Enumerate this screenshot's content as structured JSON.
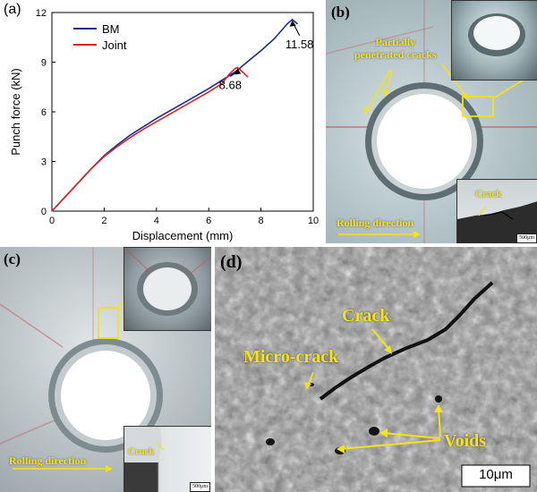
{
  "panels": {
    "a": {
      "letter": "(a)",
      "chart_data": {
        "type": "line",
        "xlabel": "Displacement (mm)",
        "ylabel": "Punch force (kN)",
        "xlim": [
          0,
          10
        ],
        "ylim": [
          0,
          12
        ],
        "xticks": [
          0,
          2,
          4,
          6,
          8,
          10
        ],
        "yticks": [
          0,
          3,
          6,
          9,
          12
        ],
        "legend_position": "top-left",
        "series": [
          {
            "name": "BM",
            "color": "#1c2a8c",
            "points": [
              [
                0,
                0
              ],
              [
                0.5,
                0.85
              ],
              [
                1,
                1.7
              ],
              [
                1.5,
                2.55
              ],
              [
                2,
                3.35
              ],
              [
                2.5,
                4.0
              ],
              [
                3,
                4.6
              ],
              [
                3.5,
                5.1
              ],
              [
                4,
                5.6
              ],
              [
                4.5,
                6.05
              ],
              [
                5,
                6.5
              ],
              [
                5.5,
                6.95
              ],
              [
                6,
                7.4
              ],
              [
                6.5,
                7.9
              ],
              [
                7,
                8.4
              ],
              [
                7.2,
                8.65
              ],
              [
                7.5,
                9.05
              ],
              [
                8,
                9.7
              ],
              [
                8.5,
                10.4
              ],
              [
                9,
                11.3
              ],
              [
                9.2,
                11.58
              ],
              [
                9.4,
                11.3
              ]
            ]
          },
          {
            "name": "Joint",
            "color": "#d9232a",
            "points": [
              [
                0,
                0
              ],
              [
                0.5,
                0.85
              ],
              [
                1,
                1.7
              ],
              [
                1.5,
                2.55
              ],
              [
                2,
                3.3
              ],
              [
                2.5,
                3.9
              ],
              [
                3,
                4.45
              ],
              [
                3.5,
                4.95
              ],
              [
                4,
                5.4
              ],
              [
                4.5,
                5.85
              ],
              [
                5,
                6.3
              ],
              [
                5.5,
                6.75
              ],
              [
                6,
                7.2
              ],
              [
                6.5,
                7.7
              ],
              [
                6.8,
                8.3
              ],
              [
                7,
                8.6
              ],
              [
                7.1,
                8.68
              ],
              [
                7.3,
                8.4
              ],
              [
                7.5,
                8.1
              ]
            ]
          }
        ],
        "annotations": [
          {
            "text": "11.58",
            "x": 9.2,
            "y": 11.58
          },
          {
            "text": "8.68",
            "x": 7.1,
            "y": 8.68
          }
        ]
      }
    },
    "b": {
      "letter": "(b)",
      "labels": {
        "partial_cracks": "Partially\npenetrated cracks",
        "rolling": "Rolling direction",
        "crack": "Crack",
        "scale": "500μm"
      }
    },
    "c": {
      "letter": "(c)",
      "labels": {
        "rolling": "Rolling direction",
        "crack": "Crack",
        "scale": "500μm"
      }
    },
    "d": {
      "letter": "(d)",
      "labels": {
        "crack": "Crack",
        "micro_crack": "Micro-crack",
        "voids": "Voids",
        "scale": "10μm"
      }
    },
    "colors": {
      "annotation": "#f4e21a",
      "bm": "#1c2a8c",
      "joint": "#d9232a"
    }
  }
}
